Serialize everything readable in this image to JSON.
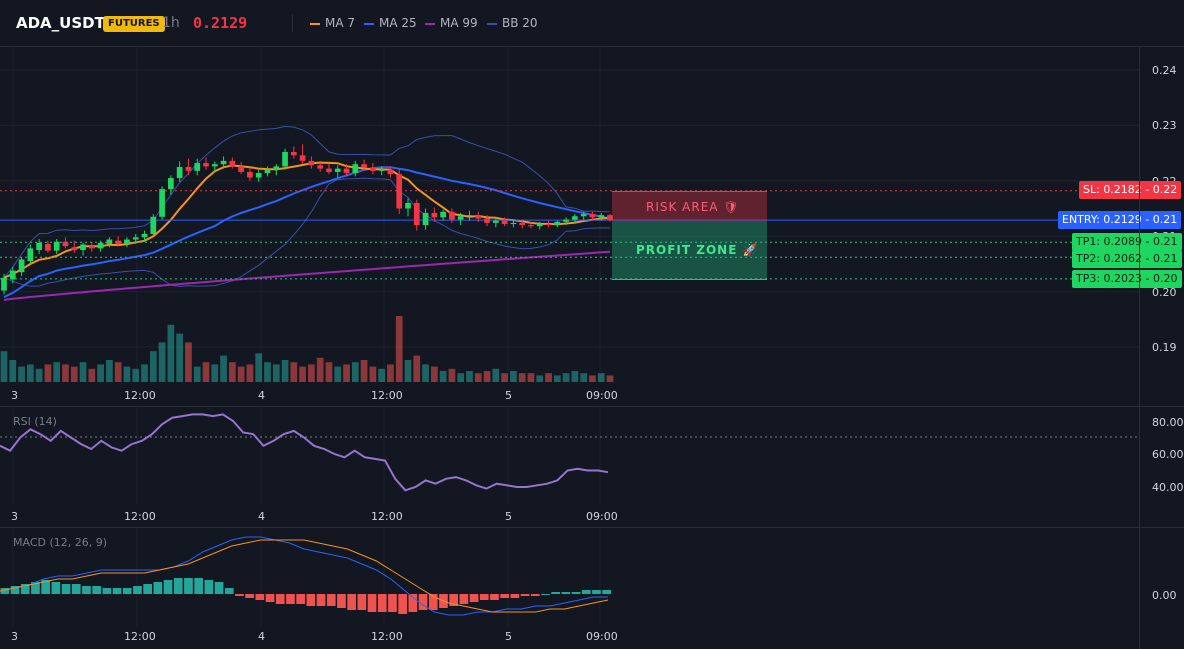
{
  "header": {
    "symbol": "ADA_USDT",
    "badge": "FUTURES",
    "interval": "1h",
    "price": "0.2129"
  },
  "indicators": [
    {
      "label": "MA 7",
      "color": "#f7931a"
    },
    {
      "label": "MA 25",
      "color": "#2962ff"
    },
    {
      "label": "MA 99",
      "color": "#9c27b0"
    },
    {
      "label": "BB 20",
      "color": "#3a4fa8"
    }
  ],
  "colors": {
    "up": "#26a69a",
    "down": "#ef5350",
    "candle_up": "#1ed760",
    "candle_down": "#f23645",
    "entry": "#2962ff",
    "sl": "#f23645",
    "tp": "#26c281"
  },
  "main_axis": [
    "0.24",
    "0.23",
    "0.22",
    "0.21",
    "0.20",
    "0.19"
  ],
  "time_axis": [
    "3",
    "12:00",
    "4",
    "12:00",
    "5",
    "09:00"
  ],
  "levels": {
    "sl": {
      "label": "SL: 0.2182",
      "side": "0.22"
    },
    "entry": {
      "label": "ENTRY: 0.2129",
      "side": "0.21"
    },
    "tp1": {
      "label": "TP1: 0.2089",
      "side": "0.21"
    },
    "tp2": {
      "label": "TP2: 0.2062",
      "side": "0.21"
    },
    "tp3": {
      "label": "TP3: 0.2023",
      "side": "0.20"
    }
  },
  "zones": {
    "risk": "RISK AREA 🛡",
    "profit": "PROFIT ZONE 🚀"
  },
  "rsi": {
    "label": "RSI (14)",
    "axis": [
      "80.00",
      "60.00",
      "40.00"
    ]
  },
  "macd": {
    "label": "MACD (12, 26, 9)",
    "axis": [
      "0.00"
    ]
  },
  "chart_data": {
    "type": "candlestick",
    "symbol": "ADA_USDT",
    "interval": "1h",
    "ylim": [
      0.185,
      0.245
    ],
    "candles": [
      {
        "o": 0.2002,
        "h": 0.2032,
        "l": 0.1995,
        "c": 0.2025
      },
      {
        "o": 0.2022,
        "h": 0.2045,
        "l": 0.2015,
        "c": 0.2038
      },
      {
        "o": 0.2035,
        "h": 0.2062,
        "l": 0.2028,
        "c": 0.2058
      },
      {
        "o": 0.2055,
        "h": 0.2085,
        "l": 0.205,
        "c": 0.2078
      },
      {
        "o": 0.2075,
        "h": 0.2095,
        "l": 0.2068,
        "c": 0.2088
      },
      {
        "o": 0.2086,
        "h": 0.2092,
        "l": 0.207,
        "c": 0.2074
      },
      {
        "o": 0.2074,
        "h": 0.2095,
        "l": 0.2068,
        "c": 0.209
      },
      {
        "o": 0.209,
        "h": 0.2098,
        "l": 0.2078,
        "c": 0.2082
      },
      {
        "o": 0.208,
        "h": 0.2092,
        "l": 0.207,
        "c": 0.2075
      },
      {
        "o": 0.2075,
        "h": 0.2088,
        "l": 0.2065,
        "c": 0.2085
      },
      {
        "o": 0.2082,
        "h": 0.209,
        "l": 0.2072,
        "c": 0.2078
      },
      {
        "o": 0.2078,
        "h": 0.2092,
        "l": 0.2072,
        "c": 0.2088
      },
      {
        "o": 0.2086,
        "h": 0.2098,
        "l": 0.208,
        "c": 0.2094
      },
      {
        "o": 0.2092,
        "h": 0.21,
        "l": 0.2082,
        "c": 0.2086
      },
      {
        "o": 0.2086,
        "h": 0.2098,
        "l": 0.208,
        "c": 0.2094
      },
      {
        "o": 0.2094,
        "h": 0.2104,
        "l": 0.2086,
        "c": 0.2098
      },
      {
        "o": 0.2098,
        "h": 0.211,
        "l": 0.209,
        "c": 0.2104
      },
      {
        "o": 0.2104,
        "h": 0.214,
        "l": 0.21,
        "c": 0.2135
      },
      {
        "o": 0.2135,
        "h": 0.219,
        "l": 0.213,
        "c": 0.2185
      },
      {
        "o": 0.2185,
        "h": 0.221,
        "l": 0.2175,
        "c": 0.2205
      },
      {
        "o": 0.2205,
        "h": 0.2235,
        "l": 0.2198,
        "c": 0.2225
      },
      {
        "o": 0.2225,
        "h": 0.224,
        "l": 0.221,
        "c": 0.2218
      },
      {
        "o": 0.2218,
        "h": 0.224,
        "l": 0.221,
        "c": 0.2232
      },
      {
        "o": 0.2232,
        "h": 0.2242,
        "l": 0.222,
        "c": 0.2226
      },
      {
        "o": 0.2226,
        "h": 0.2235,
        "l": 0.2215,
        "c": 0.223
      },
      {
        "o": 0.223,
        "h": 0.2244,
        "l": 0.2222,
        "c": 0.2236
      },
      {
        "o": 0.2236,
        "h": 0.2242,
        "l": 0.2222,
        "c": 0.2226
      },
      {
        "o": 0.2226,
        "h": 0.2234,
        "l": 0.2212,
        "c": 0.2216
      },
      {
        "o": 0.2216,
        "h": 0.2224,
        "l": 0.22,
        "c": 0.2206
      },
      {
        "o": 0.2206,
        "h": 0.222,
        "l": 0.2198,
        "c": 0.2214
      },
      {
        "o": 0.2214,
        "h": 0.2226,
        "l": 0.2208,
        "c": 0.222
      },
      {
        "o": 0.222,
        "h": 0.223,
        "l": 0.221,
        "c": 0.2226
      },
      {
        "o": 0.2226,
        "h": 0.2258,
        "l": 0.222,
        "c": 0.2252
      },
      {
        "o": 0.2252,
        "h": 0.2262,
        "l": 0.224,
        "c": 0.2246
      },
      {
        "o": 0.2246,
        "h": 0.2266,
        "l": 0.223,
        "c": 0.2236
      },
      {
        "o": 0.2236,
        "h": 0.2244,
        "l": 0.2222,
        "c": 0.2228
      },
      {
        "o": 0.2228,
        "h": 0.2236,
        "l": 0.2216,
        "c": 0.2222
      },
      {
        "o": 0.2222,
        "h": 0.223,
        "l": 0.2212,
        "c": 0.2216
      },
      {
        "o": 0.2216,
        "h": 0.2228,
        "l": 0.2206,
        "c": 0.2222
      },
      {
        "o": 0.2222,
        "h": 0.223,
        "l": 0.2208,
        "c": 0.2214
      },
      {
        "o": 0.2214,
        "h": 0.2236,
        "l": 0.2208,
        "c": 0.223
      },
      {
        "o": 0.223,
        "h": 0.2238,
        "l": 0.2218,
        "c": 0.2224
      },
      {
        "o": 0.2224,
        "h": 0.2232,
        "l": 0.2212,
        "c": 0.2218
      },
      {
        "o": 0.2218,
        "h": 0.2226,
        "l": 0.221,
        "c": 0.222
      },
      {
        "o": 0.222,
        "h": 0.2226,
        "l": 0.2206,
        "c": 0.2212
      },
      {
        "o": 0.2212,
        "h": 0.2222,
        "l": 0.214,
        "c": 0.215
      },
      {
        "o": 0.215,
        "h": 0.2168,
        "l": 0.2136,
        "c": 0.216
      },
      {
        "o": 0.216,
        "h": 0.2166,
        "l": 0.211,
        "c": 0.212
      },
      {
        "o": 0.212,
        "h": 0.215,
        "l": 0.2112,
        "c": 0.2142
      },
      {
        "o": 0.2142,
        "h": 0.2152,
        "l": 0.2126,
        "c": 0.2134
      },
      {
        "o": 0.2134,
        "h": 0.2148,
        "l": 0.2128,
        "c": 0.2144
      },
      {
        "o": 0.2144,
        "h": 0.215,
        "l": 0.2124,
        "c": 0.213
      },
      {
        "o": 0.213,
        "h": 0.2142,
        "l": 0.212,
        "c": 0.2136
      },
      {
        "o": 0.2136,
        "h": 0.2146,
        "l": 0.2128,
        "c": 0.2138
      },
      {
        "o": 0.2138,
        "h": 0.2144,
        "l": 0.2126,
        "c": 0.2132
      },
      {
        "o": 0.2132,
        "h": 0.2138,
        "l": 0.2118,
        "c": 0.2124
      },
      {
        "o": 0.2124,
        "h": 0.2134,
        "l": 0.2116,
        "c": 0.2128
      },
      {
        "o": 0.2128,
        "h": 0.2134,
        "l": 0.2118,
        "c": 0.2122
      },
      {
        "o": 0.2122,
        "h": 0.213,
        "l": 0.2116,
        "c": 0.2124
      },
      {
        "o": 0.2124,
        "h": 0.213,
        "l": 0.2114,
        "c": 0.212
      },
      {
        "o": 0.212,
        "h": 0.2126,
        "l": 0.2114,
        "c": 0.2118
      },
      {
        "o": 0.2118,
        "h": 0.2126,
        "l": 0.2112,
        "c": 0.2122
      },
      {
        "o": 0.2122,
        "h": 0.2128,
        "l": 0.2116,
        "c": 0.212
      },
      {
        "o": 0.212,
        "h": 0.2128,
        "l": 0.2116,
        "c": 0.2126
      },
      {
        "o": 0.2126,
        "h": 0.2134,
        "l": 0.212,
        "c": 0.213
      },
      {
        "o": 0.213,
        "h": 0.214,
        "l": 0.2124,
        "c": 0.2136
      },
      {
        "o": 0.2136,
        "h": 0.2144,
        "l": 0.213,
        "c": 0.214
      },
      {
        "o": 0.214,
        "h": 0.2144,
        "l": 0.2128,
        "c": 0.2134
      },
      {
        "o": 0.2134,
        "h": 0.2142,
        "l": 0.2128,
        "c": 0.2138
      },
      {
        "o": 0.2138,
        "h": 0.214,
        "l": 0.2126,
        "c": 0.2129
      }
    ],
    "volume": [
      14,
      10,
      7,
      8,
      6,
      8,
      9,
      8,
      7,
      9,
      6,
      8,
      10,
      9,
      7,
      6,
      8,
      14,
      18,
      26,
      22,
      18,
      7,
      9,
      8,
      12,
      9,
      7,
      8,
      13,
      9,
      8,
      10,
      9,
      7,
      8,
      11,
      9,
      7,
      8,
      9,
      10,
      7,
      6,
      8,
      30,
      10,
      12,
      8,
      7,
      5,
      6,
      4,
      5,
      4,
      5,
      6,
      4,
      5,
      4,
      4,
      3,
      4,
      3,
      4,
      5,
      4,
      3,
      4,
      3
    ],
    "rsi": [
      65,
      62,
      70,
      75,
      72,
      68,
      74,
      70,
      66,
      63,
      68,
      64,
      62,
      66,
      68,
      72,
      78,
      82,
      83,
      84,
      84,
      83,
      84,
      80,
      73,
      72,
      65,
      68,
      72,
      74,
      70,
      65,
      63,
      60,
      58,
      62,
      58,
      57,
      56,
      45,
      38,
      40,
      44,
      42,
      45,
      46,
      44,
      41,
      39,
      42,
      41,
      40,
      40,
      41,
      42,
      44,
      50,
      51,
      50,
      50,
      49
    ],
    "macd_hist": [
      3,
      4,
      5,
      6,
      7,
      6,
      5,
      5,
      4,
      4,
      3,
      3,
      3,
      4,
      5,
      6,
      7,
      8,
      8,
      8,
      7,
      6,
      3,
      -1,
      -2,
      -3,
      -4,
      -5,
      -5,
      -5,
      -6,
      -6,
      -6,
      -7,
      -8,
      -8,
      -9,
      -9,
      -9,
      -10,
      -9,
      -8,
      -8,
      -7,
      -6,
      -5,
      -4,
      -3,
      -3,
      -2,
      -2,
      -1,
      -1,
      0,
      1,
      1,
      1,
      2,
      2,
      2
    ],
    "macd_line": [
      1,
      2,
      3,
      5,
      6,
      6,
      7,
      8,
      8,
      8,
      8,
      8,
      9,
      11,
      14,
      16,
      18,
      19,
      19,
      18,
      17,
      15,
      14,
      13,
      12,
      10,
      8,
      5,
      1,
      -3,
      -6,
      -7,
      -7,
      -6,
      -6,
      -5,
      -5,
      -4,
      -4,
      -3,
      -2,
      -1,
      -1
    ],
    "macd_signal": [
      1,
      2,
      3,
      4,
      5,
      5,
      6,
      7,
      7,
      7,
      7,
      8,
      9,
      10,
      12,
      14,
      16,
      17,
      18,
      18,
      18,
      18,
      17,
      16,
      15,
      13,
      11,
      8,
      5,
      2,
      -1,
      -3,
      -4,
      -5,
      -6,
      -6,
      -6,
      -6,
      -5,
      -5,
      -4,
      -3,
      -2
    ]
  }
}
